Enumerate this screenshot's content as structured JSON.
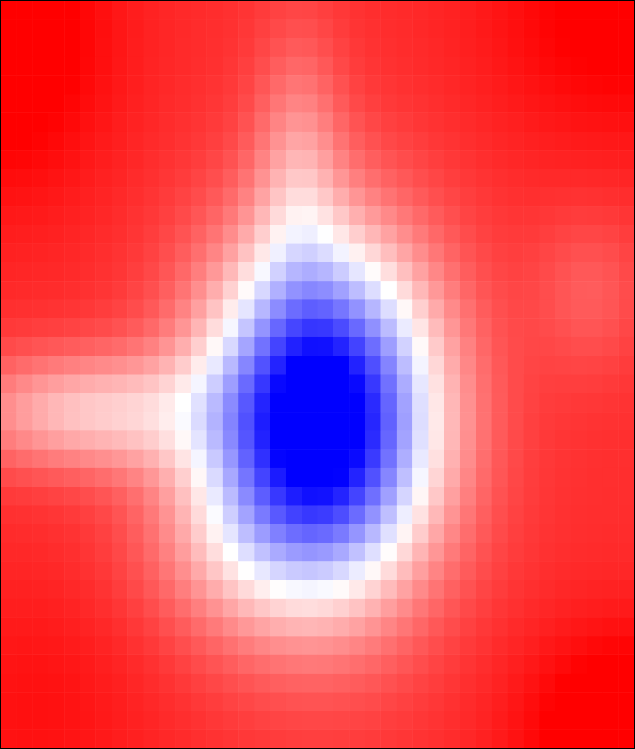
{
  "chart_data": {
    "type": "heatmap",
    "title": "",
    "xlabel": "",
    "ylabel": "",
    "grid": false,
    "legend": "none",
    "color_scale": {
      "low": "#0000ff",
      "mid": "#ffffff",
      "high": "#ff0000",
      "vmin": -1,
      "vmax": 1
    },
    "grid_shape": {
      "rows": 40,
      "cols": 40
    },
    "value_field": {
      "baseline": 0.82,
      "corner_features": [
        {
          "name": "top-left",
          "cx": 0.0,
          "cy": 0.05,
          "amp": 0.28,
          "sx": 0.18,
          "sy": 0.22
        },
        {
          "name": "top-right",
          "cx": 0.98,
          "cy": 0.02,
          "amp": 0.22,
          "sx": 0.22,
          "sy": 0.18
        },
        {
          "name": "bottom-right",
          "cx": 1.0,
          "cy": 0.98,
          "amp": 0.33,
          "sx": 0.18,
          "sy": 0.14
        },
        {
          "name": "bottom-left",
          "cx": 0.05,
          "cy": 0.95,
          "amp": 0.12,
          "sx": 0.2,
          "sy": 0.18
        }
      ],
      "center_dip": {
        "cx": 0.505,
        "cy": 0.56,
        "amp": 2.05,
        "sx": 0.18,
        "sy": 0.23
      },
      "pale_bands": [
        {
          "name": "left-middle-pale",
          "cx": 0.14,
          "cy": 0.55,
          "amp": 0.58,
          "sx": 0.2,
          "sy": 0.08
        },
        {
          "name": "top-vertical-pale",
          "cx": 0.47,
          "cy": 0.22,
          "amp": 0.34,
          "sx": 0.07,
          "sy": 0.18
        },
        {
          "name": "lower-left-pale",
          "cx": 0.36,
          "cy": 0.73,
          "amp": 0.22,
          "sx": 0.16,
          "sy": 0.13
        },
        {
          "name": "right-middle-pale",
          "cx": 0.93,
          "cy": 0.39,
          "amp": 0.18,
          "sx": 0.09,
          "sy": 0.11
        }
      ]
    }
  }
}
